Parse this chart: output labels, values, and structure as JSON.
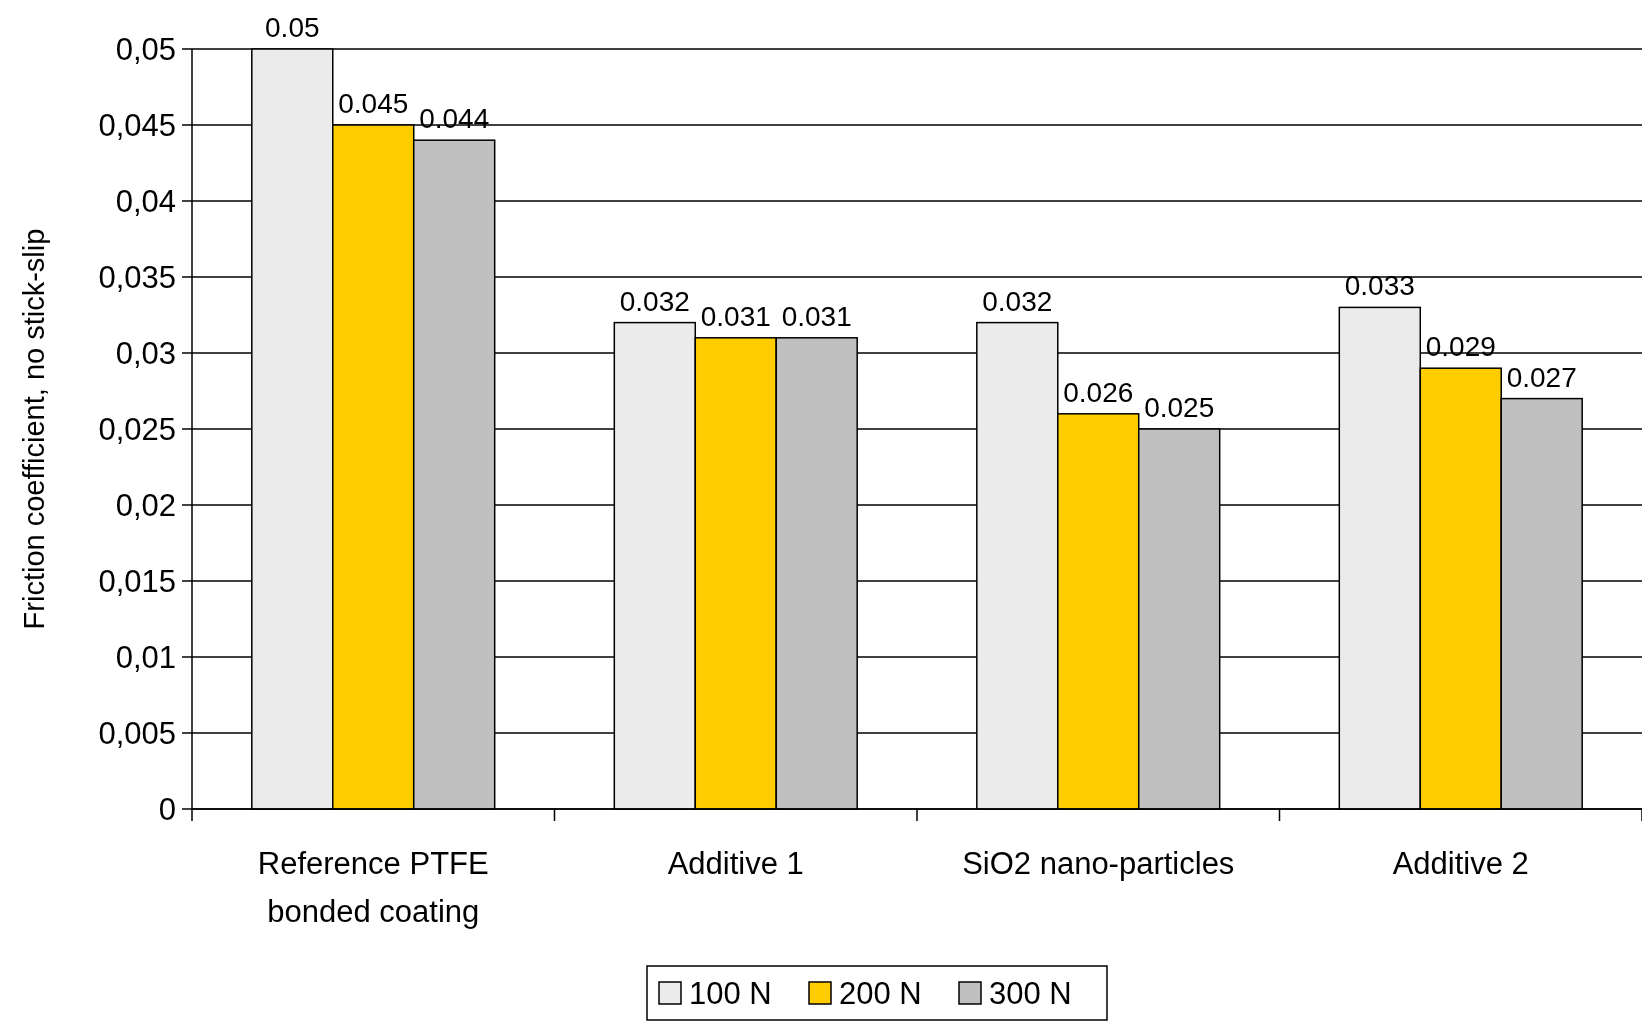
{
  "chart_data": {
    "type": "bar",
    "ylabel": "Friction coefficient, no stick-slip",
    "categories": [
      "Reference PTFE bonded coating",
      "Additive 1",
      "SiO2 nano-particles",
      "Additive 2"
    ],
    "series": [
      {
        "name": "100 N",
        "color": "#ebebeb",
        "values": [
          0.05,
          0.032,
          0.032,
          0.033
        ]
      },
      {
        "name": "200 N",
        "color": "#ffcc00",
        "values": [
          0.045,
          0.031,
          0.026,
          0.029
        ]
      },
      {
        "name": "300 N",
        "color": "#c0c0c0",
        "values": [
          0.044,
          0.031,
          0.025,
          0.027
        ]
      }
    ],
    "ylim": [
      0,
      0.05
    ],
    "yticks": [
      {
        "value": 0,
        "label": "0"
      },
      {
        "value": 0.005,
        "label": "0,005"
      },
      {
        "value": 0.01,
        "label": "0,01"
      },
      {
        "value": 0.015,
        "label": "0,015"
      },
      {
        "value": 0.02,
        "label": "0,02"
      },
      {
        "value": 0.025,
        "label": "0,025"
      },
      {
        "value": 0.03,
        "label": "0,03"
      },
      {
        "value": 0.035,
        "label": "0,035"
      },
      {
        "value": 0.04,
        "label": "0,04"
      },
      {
        "value": 0.045,
        "label": "0,045"
      },
      {
        "value": 0.05,
        "label": "0,05"
      }
    ],
    "grid": "y",
    "legend": "bottom",
    "data_labels": true
  }
}
